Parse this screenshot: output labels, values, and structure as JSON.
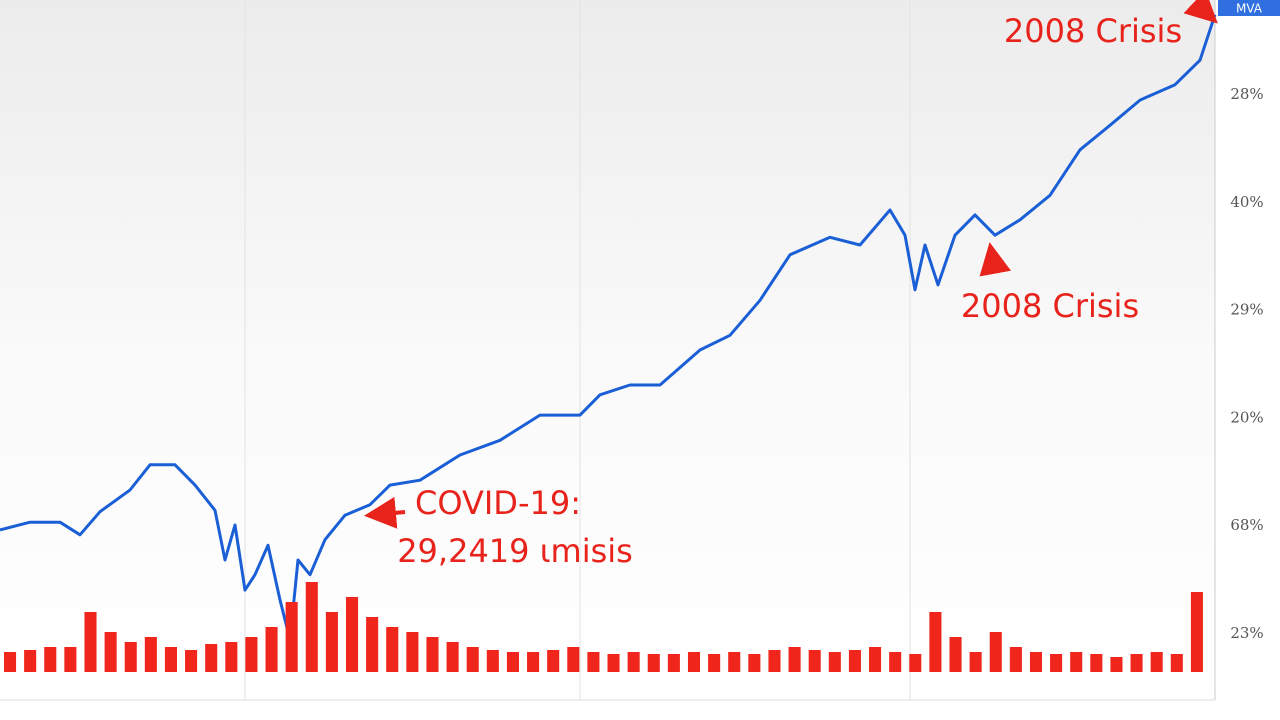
{
  "chart_data": [
    {
      "type": "line",
      "x": [
        0,
        30,
        60,
        80,
        100,
        130,
        150,
        175,
        195,
        215,
        225,
        235,
        245,
        255,
        268,
        280,
        290,
        298,
        310,
        325,
        345,
        370,
        390,
        420,
        460,
        500,
        540,
        580,
        600,
        630,
        660,
        700,
        730,
        760,
        790,
        830,
        860,
        890,
        905,
        915,
        925,
        938,
        955,
        975,
        995,
        1020,
        1050,
        1080,
        1110,
        1140,
        1175,
        1200,
        1215
      ],
      "xlim": [
        0,
        1215
      ],
      "ylim": [
        0,
        100
      ],
      "series": [
        {
          "color": "#1a5fd6",
          "values": [
            24.3,
            25.4,
            25.4,
            23.6,
            26.9,
            30,
            33.6,
            33.6,
            30.7,
            27.1,
            20,
            25,
            15.7,
            17.9,
            22.1,
            14.3,
            8.6,
            20,
            17.9,
            22.9,
            26.4,
            27.9,
            30.7,
            31.4,
            35,
            37.1,
            40.7,
            40.7,
            43.6,
            45,
            45,
            50,
            52.1,
            57.1,
            63.6,
            66.1,
            65,
            70,
            66.4,
            58.6,
            65,
            59.3,
            66.4,
            69.3,
            66.4,
            68.6,
            72.1,
            78.6,
            82.1,
            85.7,
            87.9,
            91.4,
            97.9
          ]
        }
      ],
      "axis_labels": [
        "28%",
        "40%",
        "29%",
        "20%",
        "68%",
        "23%"
      ],
      "badge": "MVA",
      "annotations": [
        "2008 Crisis",
        "2008 Crisis",
        "COVID-19:",
        "29,2419 ιmisis"
      ]
    },
    {
      "type": "bar",
      "color": "#f0261c",
      "ylim": [
        0,
        100
      ],
      "values": [
        20,
        22,
        25,
        25,
        60,
        40,
        30,
        35,
        25,
        22,
        28,
        30,
        35,
        45,
        70,
        90,
        60,
        75,
        55,
        45,
        40,
        35,
        30,
        25,
        22,
        20,
        20,
        22,
        25,
        20,
        18,
        20,
        18,
        18,
        20,
        18,
        20,
        18,
        22,
        25,
        22,
        20,
        22,
        25,
        20,
        18,
        60,
        35,
        20,
        40,
        25,
        20,
        18,
        20,
        18,
        15,
        18,
        20,
        18,
        80
      ]
    }
  ]
}
